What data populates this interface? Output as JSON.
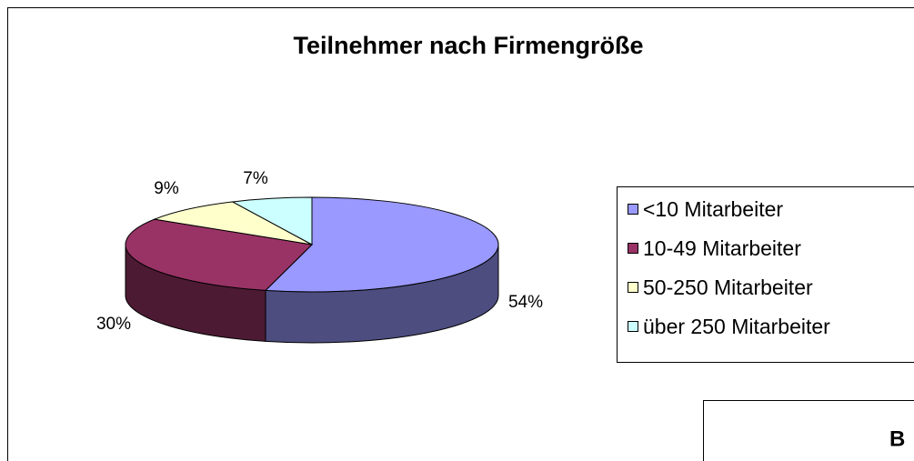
{
  "chart_data": {
    "type": "pie3d",
    "title": "Teilnehmer nach Firmengröße",
    "categories": [
      "<10 Mitarbeiter",
      "10-49 Mitarbeiter",
      "50-250 Mitarbeiter",
      "über 250 Mitarbeiter"
    ],
    "values": [
      54,
      30,
      9,
      7
    ],
    "value_labels": [
      "54%",
      "30%",
      "9%",
      "7%"
    ],
    "colors": [
      "#9999ff",
      "#993366",
      "#ffffcc",
      "#ccffff"
    ],
    "legend": "right"
  },
  "partial_box_text": "B"
}
